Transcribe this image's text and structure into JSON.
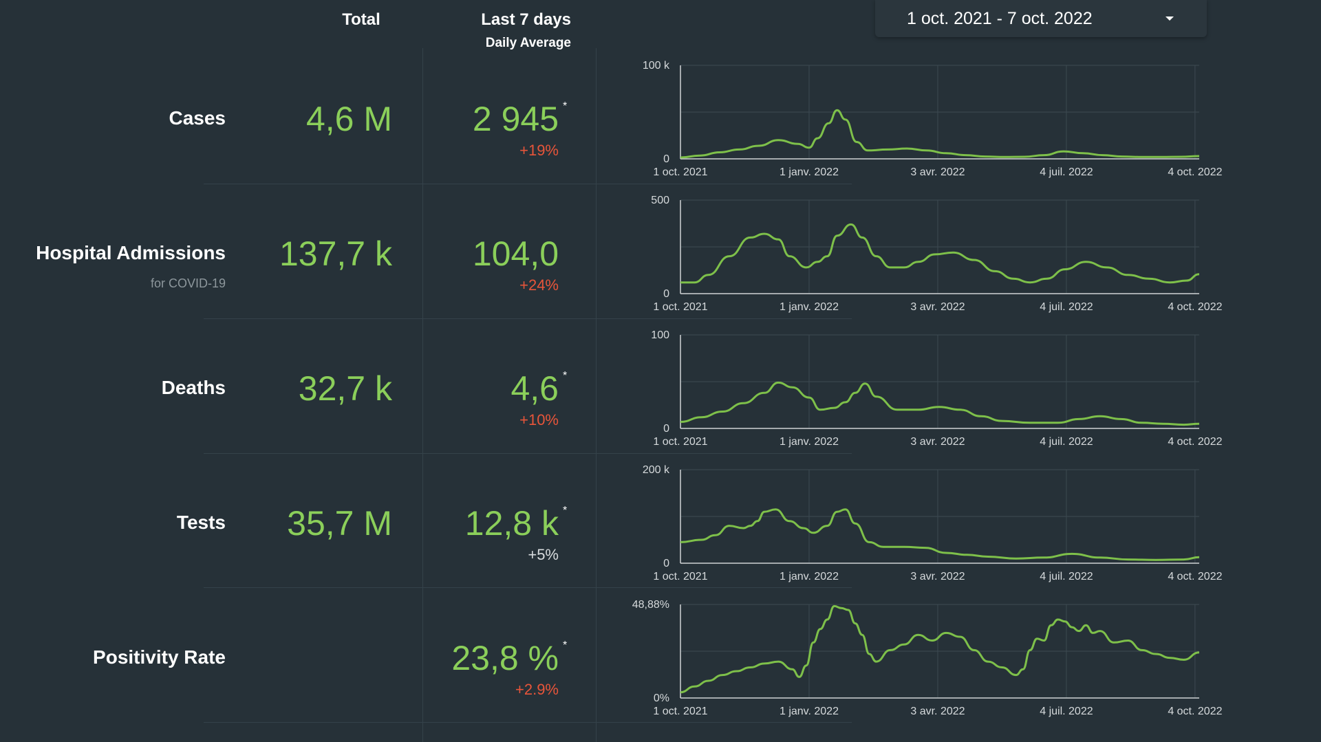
{
  "header": {
    "total_label": "Total",
    "last7_label": "Last 7 days",
    "daily_avg_label": "Daily Average"
  },
  "date_range": {
    "label": "1 oct. 2021 - 7 oct. 2022",
    "caret_icon": "chevron-down-icon"
  },
  "colors": {
    "background": "#263138",
    "value_green": "#8bcf5a",
    "line_green": "#7ec04a",
    "change_red": "#e8553a",
    "grid": "#3d4a52"
  },
  "metrics": [
    {
      "label": "Cases",
      "sub": "",
      "total": "4,6 M",
      "avg": "2 945",
      "asterisk": "*",
      "change": "+19%",
      "change_tone": "up"
    },
    {
      "label": "Hospital Admissions",
      "sub": "for COVID-19",
      "total": "137,7 k",
      "avg": "104,0",
      "asterisk": "",
      "change": "+24%",
      "change_tone": "up"
    },
    {
      "label": "Deaths",
      "sub": "",
      "total": "32,7 k",
      "avg": "4,6",
      "asterisk": "*",
      "change": "+10%",
      "change_tone": "up"
    },
    {
      "label": "Tests",
      "sub": "",
      "total": "35,7 M",
      "avg": "12,8 k",
      "asterisk": "*",
      "change": "+5%",
      "change_tone": "neutral"
    },
    {
      "label": "Positivity Rate",
      "sub": "",
      "total": "",
      "avg": "23,8 %",
      "asterisk": "*",
      "change": "+2.9%",
      "change_tone": "up"
    }
  ],
  "chart_data": [
    {
      "type": "line",
      "series_name": "Cases",
      "ylim": [
        0,
        100000
      ],
      "y_ticks": [
        "0",
        "100 k"
      ],
      "x_ticks": [
        "1 oct. 2021",
        "1 janv. 2022",
        "3 avr. 2022",
        "4 juil. 2022",
        "4 oct. 2022"
      ],
      "x": [
        0,
        14,
        28,
        42,
        56,
        70,
        84,
        92,
        98,
        106,
        112,
        118,
        126,
        134,
        148,
        162,
        176,
        190,
        204,
        218,
        232,
        246,
        260,
        274,
        288,
        302,
        316,
        330,
        344,
        358,
        371
      ],
      "y": [
        1500,
        3500,
        7000,
        10000,
        14000,
        20000,
        16000,
        12000,
        22000,
        38000,
        52000,
        42000,
        18000,
        9000,
        10000,
        11000,
        9000,
        6000,
        4000,
        2500,
        2000,
        2200,
        4000,
        8000,
        6000,
        4000,
        2500,
        2000,
        2000,
        2200,
        2945
      ]
    },
    {
      "type": "line",
      "series_name": "Hospital Admissions",
      "ylim": [
        0,
        500
      ],
      "y_ticks": [
        "0",
        "500"
      ],
      "x_ticks": [
        "1 oct. 2021",
        "1 janv. 2022",
        "3 avr. 2022",
        "4 juil. 2022",
        "4 oct. 2022"
      ],
      "x": [
        0,
        10,
        20,
        35,
        50,
        60,
        70,
        78,
        90,
        98,
        105,
        112,
        122,
        130,
        140,
        150,
        160,
        170,
        182,
        195,
        210,
        225,
        238,
        250,
        262,
        275,
        290,
        305,
        320,
        335,
        350,
        362,
        371
      ],
      "y": [
        60,
        60,
        100,
        200,
        300,
        320,
        290,
        200,
        140,
        170,
        200,
        310,
        370,
        300,
        200,
        140,
        140,
        170,
        210,
        220,
        180,
        120,
        80,
        60,
        80,
        130,
        170,
        140,
        100,
        80,
        60,
        70,
        104
      ]
    },
    {
      "type": "line",
      "series_name": "Deaths",
      "ylim": [
        0,
        100
      ],
      "y_ticks": [
        "0",
        "100"
      ],
      "x_ticks": [
        "1 oct. 2021",
        "1 janv. 2022",
        "3 avr. 2022",
        "4 juil. 2022",
        "4 oct. 2022"
      ],
      "x": [
        0,
        15,
        30,
        45,
        60,
        70,
        80,
        92,
        100,
        110,
        118,
        125,
        132,
        140,
        155,
        170,
        185,
        200,
        215,
        230,
        250,
        270,
        285,
        300,
        315,
        330,
        345,
        360,
        371
      ],
      "y": [
        7,
        12,
        18,
        27,
        38,
        49,
        44,
        33,
        20,
        22,
        28,
        38,
        48,
        34,
        20,
        20,
        23,
        20,
        13,
        8,
        6,
        6,
        10,
        13,
        10,
        6,
        5,
        4,
        5
      ]
    },
    {
      "type": "line",
      "series_name": "Tests",
      "ylim": [
        0,
        200000
      ],
      "y_ticks": [
        "0",
        "200 k"
      ],
      "x_ticks": [
        "1 oct. 2021",
        "1 janv. 2022",
        "3 avr. 2022",
        "4 juil. 2022",
        "4 oct. 2022"
      ],
      "x": [
        0,
        15,
        25,
        35,
        45,
        50,
        55,
        60,
        68,
        78,
        88,
        95,
        105,
        112,
        118,
        125,
        135,
        145,
        160,
        175,
        190,
        205,
        220,
        240,
        260,
        280,
        300,
        320,
        340,
        360,
        371
      ],
      "y": [
        45000,
        50000,
        60000,
        80000,
        75000,
        80000,
        90000,
        110000,
        115000,
        90000,
        75000,
        65000,
        80000,
        110000,
        115000,
        85000,
        45000,
        35000,
        35000,
        33000,
        22000,
        18000,
        14000,
        10000,
        12000,
        20000,
        12000,
        8000,
        7000,
        8000,
        12800
      ]
    },
    {
      "type": "line",
      "series_name": "Positivity Rate",
      "ylim": [
        0,
        48.88
      ],
      "y_ticks": [
        "0%",
        "48,88%"
      ],
      "x_ticks": [
        "1 oct. 2021",
        "1 janv. 2022",
        "3 avr. 2022",
        "4 juil. 2022",
        "4 oct. 2022"
      ],
      "x": [
        0,
        10,
        20,
        30,
        40,
        50,
        60,
        70,
        80,
        85,
        90,
        95,
        100,
        105,
        110,
        115,
        120,
        125,
        130,
        135,
        140,
        150,
        160,
        170,
        180,
        190,
        200,
        210,
        220,
        230,
        240,
        245,
        250,
        255,
        260,
        265,
        270,
        275,
        280,
        285,
        290,
        295,
        300,
        310,
        320,
        330,
        340,
        350,
        360,
        371
      ],
      "y": [
        3,
        6,
        9,
        12,
        14,
        16,
        18,
        19,
        15,
        11,
        17,
        29,
        36,
        41,
        48,
        47,
        46,
        39,
        33,
        23,
        19,
        25,
        28,
        33,
        30,
        34,
        32,
        25,
        19,
        16,
        12,
        15,
        25,
        31,
        30,
        38,
        41,
        40,
        37,
        35,
        38,
        34,
        35,
        29,
        30,
        25,
        23,
        21,
        20,
        23.8
      ]
    }
  ]
}
